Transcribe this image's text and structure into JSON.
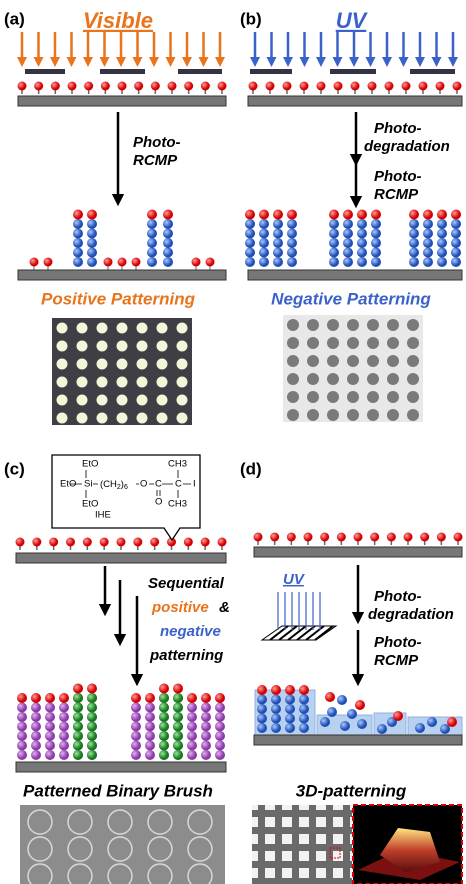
{
  "panels": [
    {
      "label": "(a)",
      "light": "Visible",
      "steps": [
        "Photo-",
        "RCMP"
      ],
      "caption": "Positive Patterning"
    },
    {
      "label": "(b)",
      "light": "UV",
      "steps": [
        "Photo-",
        "degradation",
        "Photo-",
        "RCMP"
      ],
      "caption": "Negative Patterning"
    },
    {
      "label": "(c)",
      "structure": {
        "eto": [
          "EtO",
          "EtO",
          "EtO"
        ],
        "si": "Si",
        "chain": [
          "(CH",
          "2",
          ")",
          "6"
        ],
        "o": [
          "O",
          "O"
        ],
        "c": [
          "C",
          "C"
        ],
        "ch3": [
          "CH3",
          "CH3"
        ],
        "i": "I",
        "name": "IHE"
      },
      "steps": [
        "Sequential",
        "positive",
        "&",
        "negative",
        "patterning"
      ],
      "caption": "Patterned Binary Brush"
    },
    {
      "label": "(d)",
      "light": "UV",
      "steps": [
        "Photo-",
        "degradation",
        "Photo-",
        "RCMP"
      ],
      "caption": "3D-patterning"
    }
  ]
}
